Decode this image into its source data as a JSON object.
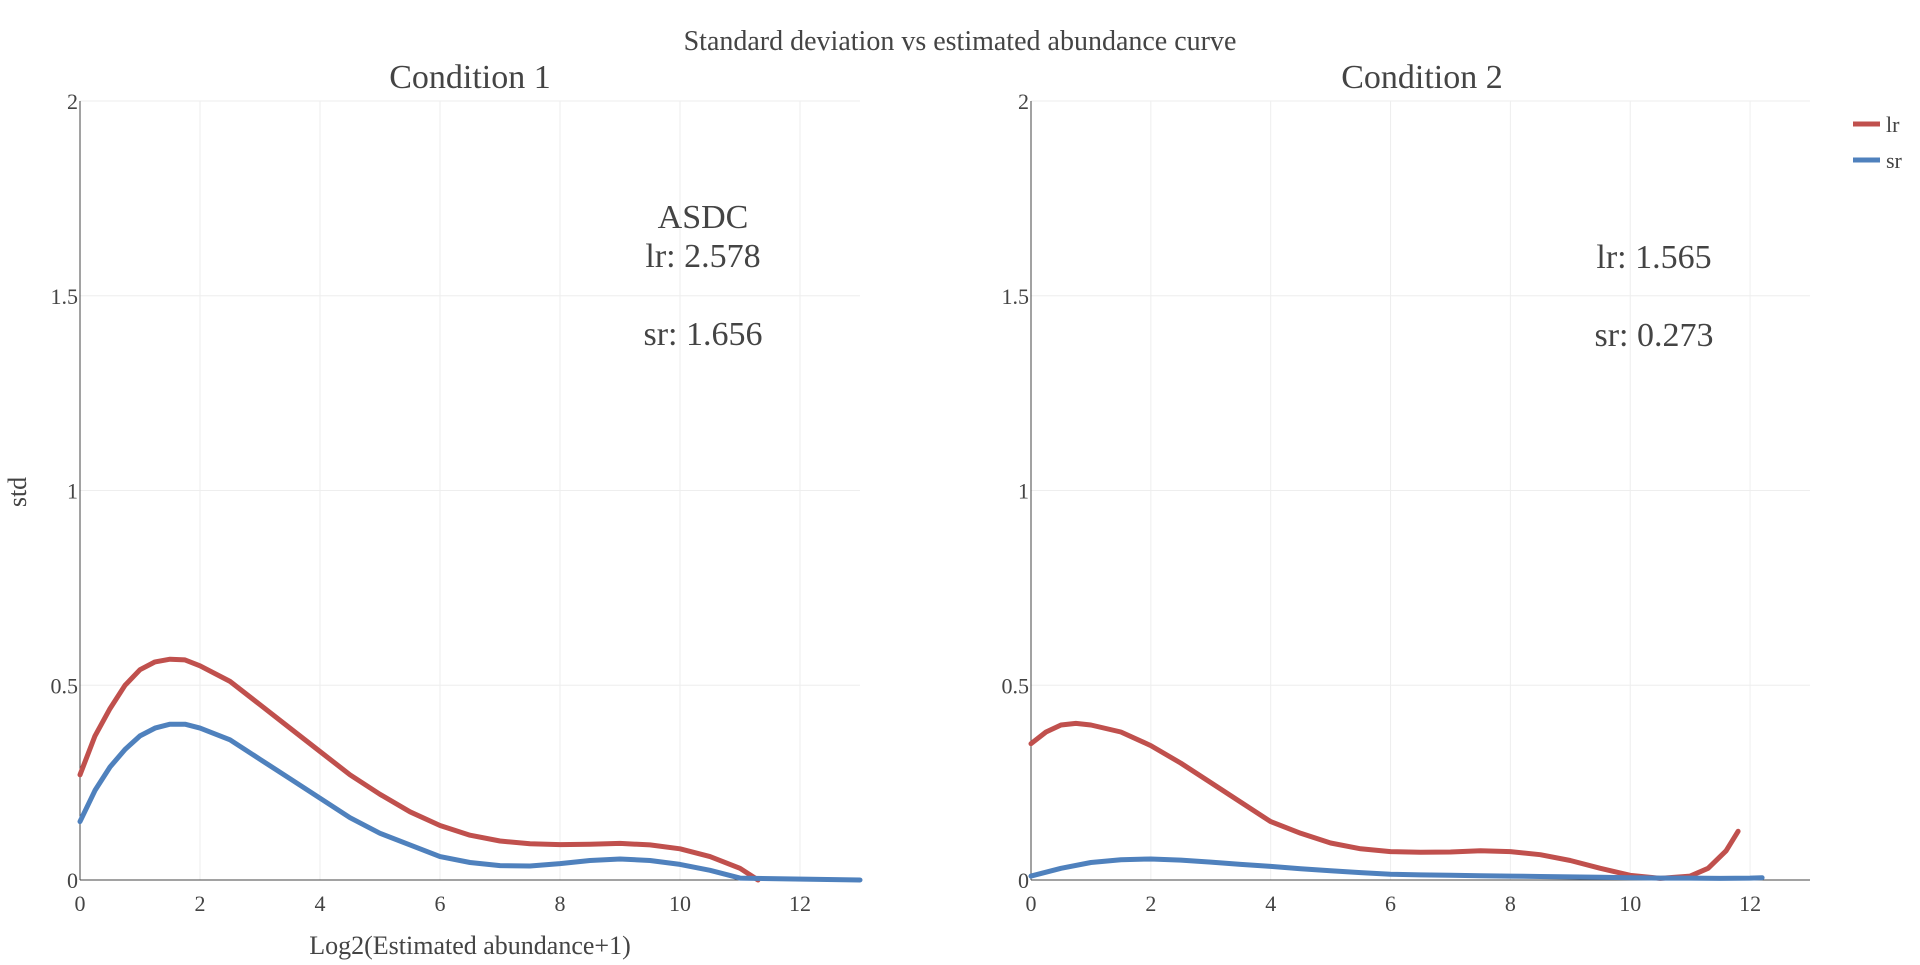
{
  "colors": {
    "lr": "#c0504d",
    "sr": "#4f81bd",
    "text": "#444444",
    "grid": "#eeeeee"
  },
  "chart_data": {
    "type": "line",
    "title": "Standard deviation vs estimated abundance curve",
    "ylabel": "std",
    "xlabel": "Log2(Estimated abundance+1)",
    "legend": {
      "placement": "top-right",
      "entries": [
        "lr",
        "sr"
      ]
    },
    "grid": true,
    "panels": [
      {
        "subtitle": "Condition 1",
        "xlim": [
          0,
          13
        ],
        "ylim": [
          0,
          2
        ],
        "xticks": [
          0,
          2,
          4,
          6,
          8,
          10,
          12
        ],
        "yticks": [
          0,
          0.5,
          1,
          1.5,
          2
        ],
        "ytick_labels": [
          "0",
          "0.5",
          "1",
          "1.5",
          "2"
        ],
        "annotation": [
          "ASDC",
          "lr: 2.578",
          "",
          "sr: 1.656"
        ],
        "series": [
          {
            "name": "lr",
            "x": [
              0,
              0.25,
              0.5,
              0.75,
              1.0,
              1.25,
              1.5,
              1.75,
              2.0,
              2.5,
              3.0,
              3.5,
              4.0,
              4.5,
              5.0,
              5.5,
              6.0,
              6.5,
              7.0,
              7.5,
              8.0,
              8.5,
              9.0,
              9.5,
              10.0,
              10.5,
              11.0,
              11.3
            ],
            "y": [
              0.27,
              0.37,
              0.44,
              0.5,
              0.54,
              0.56,
              0.567,
              0.565,
              0.55,
              0.51,
              0.45,
              0.39,
              0.33,
              0.27,
              0.22,
              0.175,
              0.14,
              0.115,
              0.1,
              0.093,
              0.091,
              0.092,
              0.094,
              0.09,
              0.08,
              0.06,
              0.03,
              0.0
            ]
          },
          {
            "name": "sr",
            "x": [
              0,
              0.25,
              0.5,
              0.75,
              1.0,
              1.25,
              1.5,
              1.75,
              2.0,
              2.5,
              3.0,
              3.5,
              4.0,
              4.5,
              5.0,
              5.5,
              6.0,
              6.5,
              7.0,
              7.5,
              8.0,
              8.5,
              9.0,
              9.5,
              10.0,
              10.5,
              11.0,
              13.0
            ],
            "y": [
              0.15,
              0.23,
              0.29,
              0.335,
              0.37,
              0.39,
              0.4,
              0.4,
              0.39,
              0.36,
              0.31,
              0.26,
              0.21,
              0.16,
              0.12,
              0.09,
              0.06,
              0.045,
              0.037,
              0.036,
              0.042,
              0.05,
              0.054,
              0.05,
              0.04,
              0.025,
              0.005,
              0.0
            ]
          }
        ]
      },
      {
        "subtitle": "Condition 2",
        "xlim": [
          0,
          13
        ],
        "ylim": [
          0,
          2
        ],
        "xticks": [
          0,
          2,
          4,
          6,
          8,
          10,
          12
        ],
        "yticks": [
          0,
          0.5,
          1,
          1.5,
          2
        ],
        "ytick_labels": [
          "0",
          "0.5",
          "1",
          "1.5",
          "2"
        ],
        "annotation": [
          "lr: 1.565",
          "",
          "sr: 0.273"
        ],
        "series": [
          {
            "name": "lr",
            "x": [
              0,
              0.25,
              0.5,
              0.75,
              1.0,
              1.5,
              2.0,
              2.5,
              3.0,
              3.5,
              4.0,
              4.5,
              5.0,
              5.5,
              6.0,
              6.5,
              7.0,
              7.5,
              8.0,
              8.5,
              9.0,
              9.5,
              10.0,
              10.5,
              11.0,
              11.3,
              11.6,
              11.8
            ],
            "y": [
              0.35,
              0.38,
              0.398,
              0.402,
              0.398,
              0.38,
              0.345,
              0.3,
              0.25,
              0.2,
              0.15,
              0.12,
              0.095,
              0.08,
              0.073,
              0.071,
              0.072,
              0.075,
              0.073,
              0.065,
              0.05,
              0.03,
              0.012,
              0.004,
              0.01,
              0.03,
              0.075,
              0.125
            ]
          },
          {
            "name": "sr",
            "x": [
              0,
              0.5,
              1.0,
              1.5,
              2.0,
              2.5,
              3.0,
              3.5,
              4.0,
              4.5,
              5.0,
              5.5,
              6.0,
              6.5,
              7.0,
              7.5,
              8.0,
              8.5,
              9.0,
              9.5,
              10.0,
              10.5,
              11.0,
              11.5,
              12.0,
              12.2
            ],
            "y": [
              0.01,
              0.03,
              0.045,
              0.052,
              0.054,
              0.051,
              0.046,
              0.04,
              0.035,
              0.029,
              0.024,
              0.019,
              0.015,
              0.013,
              0.012,
              0.011,
              0.01,
              0.009,
              0.008,
              0.007,
              0.006,
              0.005,
              0.005,
              0.004,
              0.005,
              0.006
            ]
          }
        ]
      }
    ]
  }
}
